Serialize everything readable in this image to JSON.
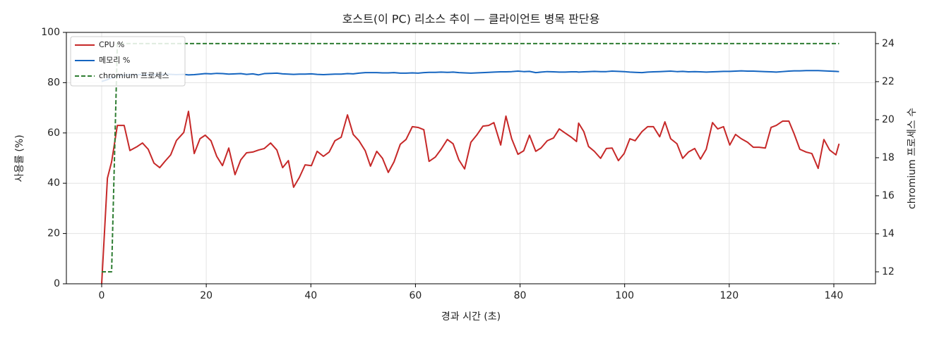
{
  "chart_data": {
    "type": "line",
    "title": "호스트(이 PC) 리소스 추이 — 클라이언트 병목 판단용",
    "x_label": "경과 시간 (초)",
    "y_label": "사용률 (%)",
    "y2_label": "chromium 프로세스 수",
    "x": [
      0,
      1.1,
      1.9,
      3,
      4.3,
      5.4,
      6.8,
      7.8,
      8.9,
      10,
      11.1,
      12.1,
      13.2,
      14.3,
      15.7,
      16.6,
      17.7,
      18.8,
      19.8,
      20.9,
      22,
      23.1,
      24.3,
      25.5,
      26.6,
      27.7,
      28.9,
      30,
      31.1,
      32.3,
      33.5,
      34.6,
      35.7,
      36.7,
      37.8,
      38.9,
      40.1,
      41.2,
      42.4,
      43.5,
      44.6,
      45.8,
      47,
      48.1,
      49.2,
      50.4,
      51.4,
      52.6,
      53.7,
      54.8,
      55.9,
      57.1,
      58.2,
      59.4,
      60.5,
      61.6,
      62.6,
      63.8,
      64.9,
      66.1,
      67.2,
      68.3,
      69.4,
      70.6,
      71.7,
      72.9,
      74,
      75,
      76.3,
      77.3,
      78.4,
      79.6,
      80.7,
      81.8,
      83,
      84,
      85.2,
      86.4,
      87.5,
      88.6,
      89.8,
      90.8,
      91.2,
      92.2,
      93.1,
      94.2,
      95.4,
      96.5,
      97.6,
      98.8,
      99.9,
      101,
      102,
      103.3,
      104.4,
      105.5,
      106.7,
      107.7,
      108.8,
      110,
      111.1,
      112.2,
      113.4,
      114.5,
      115.6,
      116.8,
      117.8,
      118.9,
      120.1,
      121.2,
      122.3,
      123.5,
      124.6,
      125.7,
      126.9,
      128,
      129,
      130.2,
      131.4,
      132.4,
      133.5,
      134.7,
      135.8,
      137,
      138.1,
      139.2,
      140.4,
      141
    ],
    "series": [
      {
        "name": "CPU %",
        "color": "#c62828",
        "values": [
          0,
          42,
          48.5,
          63,
          63,
          53,
          54.6,
          56,
          53.5,
          48,
          46.2,
          48.7,
          51.3,
          57,
          60.2,
          68.6,
          51.8,
          57.7,
          59.1,
          56.9,
          50.7,
          47,
          54,
          43.4,
          49.3,
          52.1,
          52.4,
          53.2,
          53.8,
          56,
          53.2,
          46.2,
          49,
          38.4,
          42.3,
          47.3,
          47,
          52.7,
          50.7,
          52.4,
          56.9,
          58.3,
          67.2,
          59.4,
          56.9,
          52.9,
          46.8,
          52.7,
          49.9,
          44.3,
          48.5,
          55.5,
          57.4,
          62.5,
          62.2,
          61.3,
          48.7,
          50.4,
          53.5,
          57.4,
          55.7,
          49.3,
          45.7,
          56.3,
          59.1,
          62.7,
          63,
          64.1,
          55.2,
          66.7,
          57.7,
          51.5,
          52.9,
          59.1,
          52.7,
          54,
          56.9,
          58,
          61.6,
          60,
          58.3,
          56.6,
          63.9,
          60.5,
          54.6,
          52.7,
          49.9,
          53.8,
          54,
          49,
          51.8,
          57.7,
          56.9,
          60.5,
          62.5,
          62.5,
          58.5,
          64.4,
          57.7,
          55.7,
          49.9,
          52.4,
          53.8,
          49.6,
          53.5,
          64.1,
          61.6,
          62.5,
          55.2,
          59.4,
          57.7,
          56.3,
          54.3,
          54.3,
          54,
          62.2,
          63,
          64.7,
          64.7,
          59.7,
          53.5,
          52.4,
          51.8,
          45.9,
          57.4,
          53.2,
          51.3,
          55.7
        ]
      },
      {
        "name": "메모리 %",
        "color": "#1565c0",
        "values": [
          80.5,
          81.2,
          82,
          82.8,
          83,
          83.2,
          83.1,
          83.3,
          83.2,
          83.3,
          83.2,
          83.4,
          83.3,
          83.2,
          83.3,
          83.1,
          83.2,
          83.4,
          83.6,
          83.5,
          83.7,
          83.6,
          83.4,
          83.5,
          83.6,
          83.3,
          83.5,
          83.1,
          83.6,
          83.7,
          83.8,
          83.5,
          83.4,
          83.3,
          83.4,
          83.4,
          83.5,
          83.3,
          83.2,
          83.3,
          83.4,
          83.4,
          83.6,
          83.5,
          83.8,
          84,
          84,
          84,
          83.9,
          83.9,
          84,
          83.8,
          83.8,
          83.9,
          83.8,
          84,
          84.1,
          84.1,
          84.2,
          84.1,
          84.2,
          84,
          83.9,
          83.8,
          83.9,
          84,
          84.1,
          84.2,
          84.3,
          84.3,
          84.4,
          84.6,
          84.4,
          84.5,
          84,
          84.2,
          84.4,
          84.3,
          84.2,
          84.2,
          84.3,
          84.3,
          84.2,
          84.3,
          84.4,
          84.5,
          84.4,
          84.4,
          84.6,
          84.5,
          84.4,
          84.2,
          84.1,
          84,
          84.2,
          84.3,
          84.4,
          84.5,
          84.6,
          84.4,
          84.5,
          84.3,
          84.4,
          84.3,
          84.2,
          84.3,
          84.4,
          84.5,
          84.5,
          84.6,
          84.7,
          84.6,
          84.6,
          84.5,
          84.4,
          84.3,
          84.2,
          84.4,
          84.6,
          84.7,
          84.7,
          84.8,
          84.8,
          84.8,
          84.7,
          84.6,
          84.5,
          84.4
        ]
      },
      {
        "name": "chromium 프로세스",
        "color": "#2e7d32",
        "dashed": true,
        "axis": "y2",
        "values": [
          12,
          12,
          12,
          24,
          24,
          24,
          24,
          24,
          24,
          24,
          24,
          24,
          24,
          24,
          24,
          24,
          24,
          24,
          24,
          24,
          24,
          24,
          24,
          24,
          24,
          24,
          24,
          24,
          24,
          24,
          24,
          24,
          24,
          24,
          24,
          24,
          24,
          24,
          24,
          24,
          24,
          24,
          24,
          24,
          24,
          24,
          24,
          24,
          24,
          24,
          24,
          24,
          24,
          24,
          24,
          24,
          24,
          24,
          24,
          24,
          24,
          24,
          24,
          24,
          24,
          24,
          24,
          24,
          24,
          24,
          24,
          24,
          24,
          24,
          24,
          24,
          24,
          24,
          24,
          24,
          24,
          24,
          24,
          24,
          24,
          24,
          24,
          24,
          24,
          24,
          24,
          24,
          24,
          24,
          24,
          24,
          24,
          24,
          24,
          24,
          24,
          24,
          24,
          24,
          24,
          24,
          24,
          24,
          24,
          24,
          24,
          24,
          24,
          24,
          24,
          24,
          24,
          24,
          24,
          24,
          24,
          24,
          24,
          24,
          24,
          24,
          24,
          24
        ]
      }
    ],
    "xlim": [
      -6.75,
      147.97
    ],
    "xticks": [
      0,
      20,
      40,
      60,
      80,
      100,
      120,
      140
    ],
    "ylim": [
      0,
      100
    ],
    "yticks": [
      0,
      20,
      40,
      60,
      80,
      100
    ],
    "y2lim": [
      11.37,
      24.59
    ],
    "y2ticks": [
      12,
      14,
      16,
      18,
      20,
      22,
      24
    ],
    "grid": true,
    "legend": "upper-left"
  }
}
